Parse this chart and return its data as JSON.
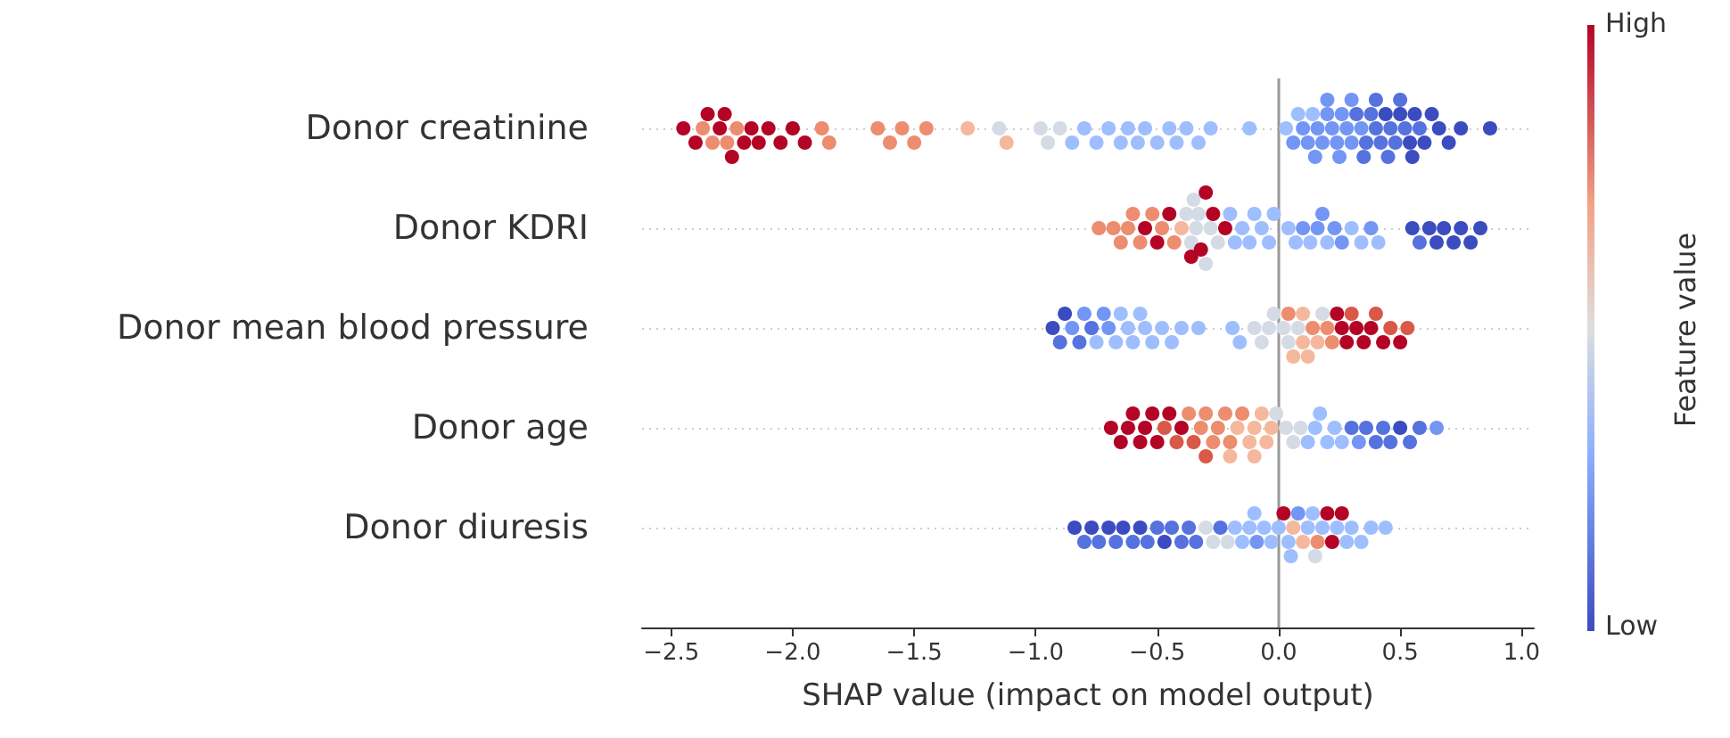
{
  "chart_data": {
    "type": "scatter",
    "orientation": "horizontal",
    "xlabel": "SHAP value (impact on model output)",
    "clabel": "Feature value",
    "annotations": [
      "High",
      "Low"
    ],
    "categories": [
      "Donor creatinine",
      "Donor KDRI",
      "Donor mean blood pressure",
      "Donor age",
      "Donor diuresis"
    ],
    "xlim": [
      -2.62,
      1.05
    ],
    "xticks": [
      {
        "value": -2.5,
        "label": "−2.5"
      },
      {
        "value": -2.0,
        "label": "−2.0"
      },
      {
        "value": -1.5,
        "label": "−1.5"
      },
      {
        "value": -1.0,
        "label": "−1.0"
      },
      {
        "value": -0.5,
        "label": "−0.5"
      },
      {
        "value": 0,
        "label": "0.0"
      },
      {
        "value": 0.5,
        "label": "0.5"
      },
      {
        "value": 1.0,
        "label": "1.0"
      }
    ],
    "grid": "y",
    "marker": "circle",
    "ref_lines": [
      {
        "axis": "x",
        "value": 0,
        "color": "#999999"
      }
    ],
    "series": [
      {
        "x": [
          "Donor creatinine",
          "Donor creatinine",
          "Donor creatinine",
          "Donor creatinine",
          "Donor creatinine",
          "Donor creatinine",
          "Donor creatinine",
          "Donor creatinine",
          "Donor creatinine",
          "Donor creatinine",
          "Donor creatinine",
          "Donor creatinine",
          "Donor creatinine",
          "Donor creatinine",
          "Donor creatinine",
          "Donor creatinine",
          "Donor creatinine",
          "Donor creatinine",
          "Donor creatinine",
          "Donor creatinine",
          "Donor creatinine",
          "Donor creatinine",
          "Donor creatinine",
          "Donor creatinine",
          "Donor creatinine",
          "Donor creatinine",
          "Donor creatinine",
          "Donor creatinine",
          "Donor creatinine",
          "Donor creatinine",
          "Donor creatinine",
          "Donor creatinine",
          "Donor creatinine",
          "Donor creatinine",
          "Donor creatinine",
          "Donor creatinine",
          "Donor creatinine",
          "Donor creatinine",
          "Donor creatinine",
          "Donor creatinine",
          "Donor creatinine",
          "Donor creatinine",
          "Donor creatinine",
          "Donor creatinine",
          "Donor creatinine",
          "Donor creatinine",
          "Donor creatinine",
          "Donor creatinine",
          "Donor creatinine",
          "Donor creatinine",
          "Donor creatinine",
          "Donor creatinine",
          "Donor creatinine",
          "Donor creatinine",
          "Donor creatinine",
          "Donor creatinine",
          "Donor creatinine",
          "Donor creatinine",
          "Donor creatinine",
          "Donor creatinine",
          "Donor creatinine",
          "Donor creatinine",
          "Donor creatinine",
          "Donor creatinine",
          "Donor creatinine",
          "Donor creatinine",
          "Donor creatinine",
          "Donor creatinine",
          "Donor creatinine",
          "Donor creatinine",
          "Donor creatinine",
          "Donor creatinine",
          "Donor creatinine",
          "Donor creatinine",
          "Donor creatinine",
          "Donor creatinine",
          "Donor creatinine",
          "Donor creatinine",
          "Donor creatinine",
          "Donor creatinine",
          "Donor creatinine",
          "Donor creatinine",
          "Donor creatinine",
          "Donor creatinine",
          "Donor creatinine",
          "Donor creatinine",
          "Donor creatinine",
          "Donor creatinine"
        ],
        "values": [
          -2.45,
          -2.4,
          -2.37,
          -2.35,
          -2.33,
          -2.3,
          -2.28,
          -2.27,
          -2.25,
          -2.23,
          -2.2,
          -2.17,
          -2.14,
          -2.1,
          -2.05,
          -2.0,
          -1.95,
          -1.88,
          -1.85,
          -1.65,
          -1.6,
          -1.55,
          -1.5,
          -1.45,
          -1.28,
          -1.15,
          -1.12,
          -0.98,
          -0.95,
          -0.9,
          -0.85,
          -0.8,
          -0.75,
          -0.7,
          -0.65,
          -0.62,
          -0.58,
          -0.55,
          -0.5,
          -0.45,
          -0.42,
          -0.38,
          -0.33,
          -0.28,
          -0.12,
          0.03,
          0.06,
          0.08,
          0.1,
          0.12,
          0.14,
          0.16,
          0.18,
          0.2,
          0.22,
          0.24,
          0.26,
          0.28,
          0.3,
          0.32,
          0.34,
          0.36,
          0.38,
          0.4,
          0.42,
          0.44,
          0.46,
          0.48,
          0.5,
          0.52,
          0.54,
          0.56,
          0.58,
          0.6,
          0.63,
          0.66,
          0.7,
          0.75,
          0.87,
          0.15,
          0.25,
          0.35,
          0.45,
          0.5,
          0.55,
          0.4,
          0.3,
          0.2
        ],
        "colors": [
          "#b40426",
          "#b40426",
          "#ec8d6f",
          "#b40426",
          "#ec8d6f",
          "#b40426",
          "#b40426",
          "#ec8d6f",
          "#b40426",
          "#ec8d6f",
          "#b40426",
          "#b40426",
          "#b40426",
          "#b40426",
          "#b40426",
          "#b40426",
          "#b40426",
          "#ec8d6f",
          "#ec8d6f",
          "#ec8d6f",
          "#ec8d6f",
          "#ec8d6f",
          "#ec8d6f",
          "#ec8d6f",
          "#f5b89c",
          "#d5dbe5",
          "#f5b89c",
          "#d5dbe5",
          "#d5dbe5",
          "#d5dbe5",
          "#9ebeff",
          "#9ebeff",
          "#9ebeff",
          "#9ebeff",
          "#9ebeff",
          "#9ebeff",
          "#9ebeff",
          "#9ebeff",
          "#9ebeff",
          "#9ebeff",
          "#9ebeff",
          "#9ebeff",
          "#9ebeff",
          "#9ebeff",
          "#9ebeff",
          "#9ebeff",
          "#7396f5",
          "#9ebeff",
          "#7396f5",
          "#7396f5",
          "#9ebeff",
          "#7396f5",
          "#7396f5",
          "#7396f5",
          "#7396f5",
          "#7396f5",
          "#7396f5",
          "#7396f5",
          "#7396f5",
          "#5572df",
          "#7396f5",
          "#5572df",
          "#5572df",
          "#5572df",
          "#5572df",
          "#3b4cc0",
          "#5572df",
          "#5572df",
          "#3b4cc0",
          "#5572df",
          "#3b4cc0",
          "#3b4cc0",
          "#5572df",
          "#3b4cc0",
          "#3b4cc0",
          "#3b4cc0",
          "#3b4cc0",
          "#3b4cc0",
          "#3b4cc0",
          "#7396f5",
          "#7396f5",
          "#5572df",
          "#5572df",
          "#5572df",
          "#3b4cc0",
          "#5572df",
          "#7396f5",
          "#7396f5"
        ]
      },
      {
        "x": [
          "Donor KDRI",
          "Donor KDRI",
          "Donor KDRI",
          "Donor KDRI",
          "Donor KDRI",
          "Donor KDRI",
          "Donor KDRI",
          "Donor KDRI",
          "Donor KDRI",
          "Donor KDRI",
          "Donor KDRI",
          "Donor KDRI",
          "Donor KDRI",
          "Donor KDRI",
          "Donor KDRI",
          "Donor KDRI",
          "Donor KDRI",
          "Donor KDRI",
          "Donor KDRI",
          "Donor KDRI",
          "Donor KDRI",
          "Donor KDRI",
          "Donor KDRI",
          "Donor KDRI",
          "Donor KDRI",
          "Donor KDRI",
          "Donor KDRI",
          "Donor KDRI",
          "Donor KDRI",
          "Donor KDRI",
          "Donor KDRI",
          "Donor KDRI",
          "Donor KDRI",
          "Donor KDRI",
          "Donor KDRI",
          "Donor KDRI",
          "Donor KDRI",
          "Donor KDRI",
          "Donor KDRI",
          "Donor KDRI",
          "Donor KDRI",
          "Donor KDRI",
          "Donor KDRI",
          "Donor KDRI",
          "Donor KDRI",
          "Donor KDRI",
          "Donor KDRI",
          "Donor KDRI",
          "Donor KDRI",
          "Donor KDRI",
          "Donor KDRI",
          "Donor KDRI",
          "Donor KDRI",
          "Donor KDRI",
          "Donor KDRI",
          "Donor KDRI"
        ],
        "values": [
          -0.74,
          -0.68,
          -0.65,
          -0.62,
          -0.6,
          -0.57,
          -0.55,
          -0.52,
          -0.5,
          -0.48,
          -0.45,
          -0.43,
          -0.4,
          -0.38,
          -0.36,
          -0.35,
          -0.33,
          -0.32,
          -0.3,
          -0.28,
          -0.27,
          -0.25,
          -0.22,
          -0.2,
          -0.18,
          -0.15,
          -0.12,
          -0.1,
          -0.07,
          -0.04,
          -0.02,
          0.04,
          0.07,
          0.1,
          0.13,
          0.16,
          0.18,
          0.2,
          0.23,
          0.26,
          0.3,
          0.34,
          0.38,
          0.41,
          0.55,
          0.58,
          0.62,
          0.65,
          0.68,
          0.72,
          0.75,
          0.79,
          0.83,
          -0.36,
          -0.34,
          -0.3
        ],
        "colors": [
          "#ec8d6f",
          "#ec8d6f",
          "#ec8d6f",
          "#ec8d6f",
          "#ec8d6f",
          "#ec8d6f",
          "#b40426",
          "#ec8d6f",
          "#b40426",
          "#ec8d6f",
          "#b40426",
          "#ec8d6f",
          "#f5b89c",
          "#d5dbe5",
          "#d5dbe5",
          "#d5dbe5",
          "#d5dbe5",
          "#b40426",
          "#d5dbe5",
          "#d5dbe5",
          "#b40426",
          "#d5dbe5",
          "#b40426",
          "#9ebeff",
          "#9ebeff",
          "#9ebeff",
          "#9ebeff",
          "#9ebeff",
          "#9ebeff",
          "#9ebeff",
          "#9ebeff",
          "#9ebeff",
          "#9ebeff",
          "#7396f5",
          "#9ebeff",
          "#7396f5",
          "#7396f5",
          "#9ebeff",
          "#7396f5",
          "#7396f5",
          "#9ebeff",
          "#9ebeff",
          "#7396f5",
          "#9ebeff",
          "#3b4cc0",
          "#5572df",
          "#3b4cc0",
          "#3b4cc0",
          "#3b4cc0",
          "#3b4cc0",
          "#3b4cc0",
          "#3b4cc0",
          "#3b4cc0",
          "#b40426",
          "#d5dbe5",
          "#b40426"
        ]
      },
      {
        "x": [
          "Donor mean blood pressure",
          "Donor mean blood pressure",
          "Donor mean blood pressure",
          "Donor mean blood pressure",
          "Donor mean blood pressure",
          "Donor mean blood pressure",
          "Donor mean blood pressure",
          "Donor mean blood pressure",
          "Donor mean blood pressure",
          "Donor mean blood pressure",
          "Donor mean blood pressure",
          "Donor mean blood pressure",
          "Donor mean blood pressure",
          "Donor mean blood pressure",
          "Donor mean blood pressure",
          "Donor mean blood pressure",
          "Donor mean blood pressure",
          "Donor mean blood pressure",
          "Donor mean blood pressure",
          "Donor mean blood pressure",
          "Donor mean blood pressure",
          "Donor mean blood pressure",
          "Donor mean blood pressure",
          "Donor mean blood pressure",
          "Donor mean blood pressure",
          "Donor mean blood pressure",
          "Donor mean blood pressure",
          "Donor mean blood pressure",
          "Donor mean blood pressure",
          "Donor mean blood pressure",
          "Donor mean blood pressure",
          "Donor mean blood pressure",
          "Donor mean blood pressure",
          "Donor mean blood pressure",
          "Donor mean blood pressure",
          "Donor mean blood pressure",
          "Donor mean blood pressure",
          "Donor mean blood pressure",
          "Donor mean blood pressure",
          "Donor mean blood pressure",
          "Donor mean blood pressure",
          "Donor mean blood pressure",
          "Donor mean blood pressure",
          "Donor mean blood pressure",
          "Donor mean blood pressure",
          "Donor mean blood pressure",
          "Donor mean blood pressure",
          "Donor mean blood pressure",
          "Donor mean blood pressure",
          "Donor mean blood pressure",
          "Donor mean blood pressure",
          "Donor mean blood pressure"
        ],
        "values": [
          -0.93,
          -0.9,
          -0.88,
          -0.85,
          -0.82,
          -0.8,
          -0.77,
          -0.75,
          -0.72,
          -0.7,
          -0.67,
          -0.65,
          -0.62,
          -0.6,
          -0.57,
          -0.55,
          -0.52,
          -0.48,
          -0.44,
          -0.4,
          -0.33,
          -0.19,
          -0.16,
          -0.1,
          -0.07,
          -0.04,
          -0.02,
          0.02,
          0.04,
          0.06,
          0.08,
          0.1,
          0.12,
          0.14,
          0.16,
          0.18,
          0.2,
          0.22,
          0.24,
          0.26,
          0.28,
          0.3,
          0.32,
          0.35,
          0.38,
          0.4,
          0.43,
          0.46,
          0.5,
          0.53,
          0.1,
          0.04
        ],
        "colors": [
          "#3b4cc0",
          "#5572df",
          "#3b4cc0",
          "#7396f5",
          "#5572df",
          "#7396f5",
          "#5572df",
          "#9ebeff",
          "#7396f5",
          "#7396f5",
          "#9ebeff",
          "#9ebeff",
          "#9ebeff",
          "#9ebeff",
          "#9ebeff",
          "#9ebeff",
          "#9ebeff",
          "#9ebeff",
          "#9ebeff",
          "#9ebeff",
          "#9ebeff",
          "#9ebeff",
          "#9ebeff",
          "#d5dbe5",
          "#d5dbe5",
          "#d5dbe5",
          "#d5dbe5",
          "#d5dbe5",
          "#d5dbe5",
          "#f5b89c",
          "#d5dbe5",
          "#f5b89c",
          "#f5b89c",
          "#ec8d6f",
          "#f5b89c",
          "#d5dbe5",
          "#ec8d6f",
          "#ec8d6f",
          "#b40426",
          "#b40426",
          "#b40426",
          "#d95847",
          "#b40426",
          "#b40426",
          "#b40426",
          "#d95847",
          "#b40426",
          "#d95847",
          "#b40426",
          "#d95847",
          "#f5b89c",
          "#ec8d6f"
        ]
      },
      {
        "x": [
          "Donor age",
          "Donor age",
          "Donor age",
          "Donor age",
          "Donor age",
          "Donor age",
          "Donor age",
          "Donor age",
          "Donor age",
          "Donor age",
          "Donor age",
          "Donor age",
          "Donor age",
          "Donor age",
          "Donor age",
          "Donor age",
          "Donor age",
          "Donor age",
          "Donor age",
          "Donor age",
          "Donor age",
          "Donor age",
          "Donor age",
          "Donor age",
          "Donor age",
          "Donor age",
          "Donor age",
          "Donor age",
          "Donor age",
          "Donor age",
          "Donor age",
          "Donor age",
          "Donor age",
          "Donor age",
          "Donor age",
          "Donor age",
          "Donor age",
          "Donor age",
          "Donor age",
          "Donor age",
          "Donor age",
          "Donor age",
          "Donor age",
          "Donor age",
          "Donor age",
          "Donor age",
          "Donor age",
          "Donor age",
          "Donor age",
          "Donor age"
        ],
        "values": [
          -0.69,
          -0.65,
          -0.62,
          -0.6,
          -0.57,
          -0.55,
          -0.52,
          -0.5,
          -0.47,
          -0.45,
          -0.42,
          -0.4,
          -0.37,
          -0.35,
          -0.32,
          -0.3,
          -0.27,
          -0.25,
          -0.22,
          -0.2,
          -0.17,
          -0.15,
          -0.12,
          -0.1,
          -0.07,
          -0.05,
          -0.03,
          -0.01,
          0.03,
          0.06,
          0.09,
          0.12,
          0.15,
          0.17,
          0.2,
          0.23,
          0.26,
          0.3,
          0.33,
          0.36,
          0.4,
          0.43,
          0.46,
          0.5,
          0.54,
          0.58,
          0.65,
          -0.2,
          -0.1,
          -0.3
        ],
        "colors": [
          "#b40426",
          "#b40426",
          "#b40426",
          "#b40426",
          "#b40426",
          "#b40426",
          "#b40426",
          "#b40426",
          "#d95847",
          "#b40426",
          "#d95847",
          "#b40426",
          "#ec8d6f",
          "#d95847",
          "#ec8d6f",
          "#ec8d6f",
          "#ec8d6f",
          "#ec8d6f",
          "#ec8d6f",
          "#ec8d6f",
          "#f5b89c",
          "#ec8d6f",
          "#f5b89c",
          "#f5b89c",
          "#f5b89c",
          "#f5b89c",
          "#f5b89c",
          "#d5dbe5",
          "#d5dbe5",
          "#d5dbe5",
          "#d5dbe5",
          "#9ebeff",
          "#9ebeff",
          "#9ebeff",
          "#9ebeff",
          "#9ebeff",
          "#9ebeff",
          "#5572df",
          "#7396f5",
          "#5572df",
          "#5572df",
          "#5572df",
          "#5572df",
          "#3b4cc0",
          "#5572df",
          "#5572df",
          "#7396f5",
          "#f5b89c",
          "#f5b89c",
          "#d95847"
        ]
      },
      {
        "x": [
          "Donor diuresis",
          "Donor diuresis",
          "Donor diuresis",
          "Donor diuresis",
          "Donor diuresis",
          "Donor diuresis",
          "Donor diuresis",
          "Donor diuresis",
          "Donor diuresis",
          "Donor diuresis",
          "Donor diuresis",
          "Donor diuresis",
          "Donor diuresis",
          "Donor diuresis",
          "Donor diuresis",
          "Donor diuresis",
          "Donor diuresis",
          "Donor diuresis",
          "Donor diuresis",
          "Donor diuresis",
          "Donor diuresis",
          "Donor diuresis",
          "Donor diuresis",
          "Donor diuresis",
          "Donor diuresis",
          "Donor diuresis",
          "Donor diuresis",
          "Donor diuresis",
          "Donor diuresis",
          "Donor diuresis",
          "Donor diuresis",
          "Donor diuresis",
          "Donor diuresis",
          "Donor diuresis",
          "Donor diuresis",
          "Donor diuresis",
          "Donor diuresis",
          "Donor diuresis",
          "Donor diuresis",
          "Donor diuresis",
          "Donor diuresis",
          "Donor diuresis",
          "Donor diuresis",
          "Donor diuresis",
          "Donor diuresis",
          "Donor diuresis",
          "Donor diuresis",
          "Donor diuresis"
        ],
        "values": [
          -0.84,
          -0.8,
          -0.77,
          -0.74,
          -0.7,
          -0.67,
          -0.64,
          -0.6,
          -0.57,
          -0.54,
          -0.5,
          -0.47,
          -0.44,
          -0.4,
          -0.37,
          -0.34,
          -0.3,
          -0.27,
          -0.24,
          -0.21,
          -0.18,
          -0.15,
          -0.12,
          -0.09,
          -0.06,
          -0.03,
          0.0,
          0.02,
          0.04,
          0.06,
          0.08,
          0.1,
          0.12,
          0.14,
          0.16,
          0.18,
          0.2,
          0.22,
          0.24,
          0.26,
          0.28,
          0.3,
          0.34,
          0.38,
          0.44,
          -0.1,
          0.05,
          0.15
        ],
        "colors": [
          "#3b4cc0",
          "#5572df",
          "#3b4cc0",
          "#5572df",
          "#3b4cc0",
          "#5572df",
          "#3b4cc0",
          "#5572df",
          "#3b4cc0",
          "#5572df",
          "#5572df",
          "#3b4cc0",
          "#5572df",
          "#5572df",
          "#5572df",
          "#5572df",
          "#d5dbe5",
          "#d5dbe5",
          "#5572df",
          "#d5dbe5",
          "#9ebeff",
          "#9ebeff",
          "#9ebeff",
          "#7396f5",
          "#9ebeff",
          "#9ebeff",
          "#9ebeff",
          "#b40426",
          "#9ebeff",
          "#f5b89c",
          "#7396f5",
          "#f5b89c",
          "#9ebeff",
          "#9ebeff",
          "#ec8d6f",
          "#9ebeff",
          "#b40426",
          "#b40426",
          "#9ebeff",
          "#b40426",
          "#9ebeff",
          "#9ebeff",
          "#9ebeff",
          "#9ebeff",
          "#9ebeff",
          "#9ebeff",
          "#9ebeff",
          "#d5dbe5"
        ]
      }
    ]
  }
}
